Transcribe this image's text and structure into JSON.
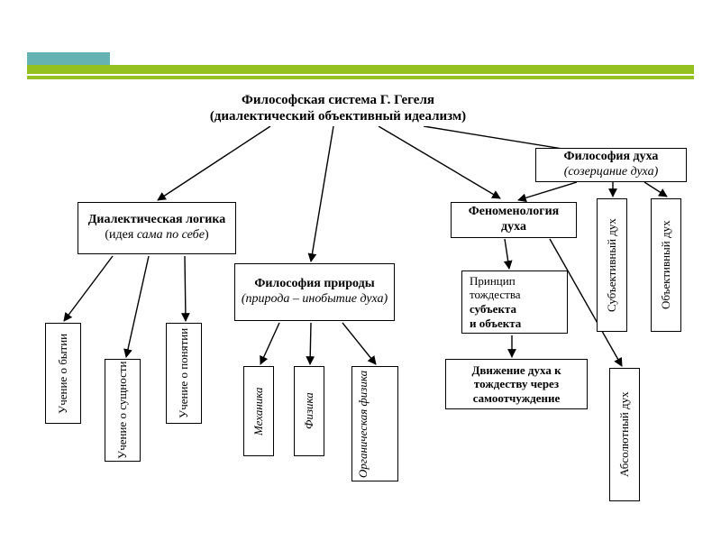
{
  "type": "tree-diagram",
  "colors": {
    "accent_green": "#94c11f",
    "accent_teal": "#66b2b2",
    "border": "#000000",
    "bg": "#ffffff"
  },
  "typography": {
    "family": "Times New Roman",
    "title_pt": 15,
    "node_pt": 13,
    "vertical_pt": 12
  },
  "title": {
    "line1": "Философская система Г. Гегеля",
    "line2": "(диалектический объективный идеализм)"
  },
  "branch1": {
    "main": "Диалектическая логика",
    "sub": "(идея сама по себе)",
    "children": [
      "Учение о бытии",
      "Учение о сущности",
      "Учение о понятии"
    ]
  },
  "branch2": {
    "main": "Философия природы",
    "sub": "(природа – инобытие духа)",
    "children": [
      "Механика",
      "Физика",
      "Органическая физика"
    ]
  },
  "branch3": {
    "main": "Философия духа",
    "sub": "(созерцание духа)",
    "A_label": "Феноменология духа",
    "A_child1": {
      "l1": "Принцип",
      "l2": "тождества",
      "l3": "субъекта",
      "l4": "и объекта"
    },
    "A_child2": {
      "l1": "Движение духа к",
      "l2": "тождеству через",
      "l3": "самоотчуждение"
    },
    "B": "Субъективный дух",
    "C": "Объективный дух",
    "D": "Абсолютный дух"
  }
}
